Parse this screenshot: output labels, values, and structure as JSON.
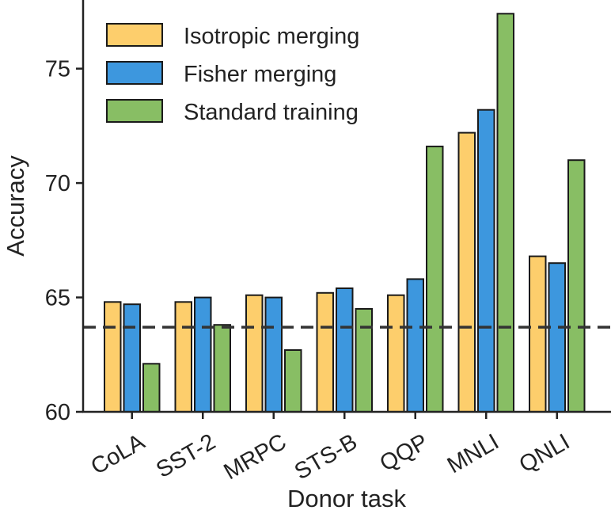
{
  "chart_data": {
    "type": "bar",
    "title": "",
    "xlabel": "Donor task",
    "ylabel": "Accuracy",
    "categories": [
      "CoLA",
      "SST-2",
      "MRPC",
      "STS-B",
      "QQP",
      "MNLI",
      "QNLI"
    ],
    "series": [
      {
        "name": "Isotropic merging",
        "color": "#FDCE6C",
        "values": [
          64.8,
          64.8,
          65.1,
          65.2,
          65.1,
          72.2,
          66.8
        ]
      },
      {
        "name": "Fisher merging",
        "color": "#3D97DE",
        "values": [
          64.7,
          65.0,
          65.0,
          65.4,
          65.8,
          73.2,
          66.5
        ]
      },
      {
        "name": "Standard training",
        "color": "#88BE64",
        "values": [
          62.1,
          63.8,
          62.7,
          64.5,
          71.6,
          77.4,
          71.0
        ]
      }
    ],
    "ylim": [
      60,
      78
    ],
    "yticks": [
      60,
      65,
      70,
      75
    ],
    "baseline": {
      "value": 63.7,
      "style": "dashed",
      "color": "#333333"
    },
    "legend_position": "top-left",
    "grid": false
  }
}
